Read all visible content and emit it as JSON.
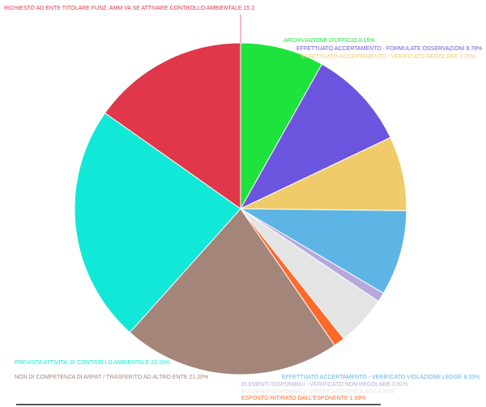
{
  "chart_data": {
    "type": "pie",
    "categories": [
      "ARCHIVIAZIONE D'UFFICIO",
      "EFFETTUATO ACCERTAMENTO - FORMULATE OSSERVAZIONI",
      "EFFETTUATO ACCERTAMENTO - VERIFICATO REGOLARE",
      "EFFETTUATO ACCERTAMENTO - VERIFICATO VIOLAZIONE LEGGE",
      "ELEMENTI DISPONIBILI - VERIFICATO NON REGOLARE",
      "ELEMENTI DISPONIBILI - VERIFICATO REGOLARE",
      "ESPOSTO RITIRATO DALL'ESPONENTE",
      "NON DI COMPETENZA DI ARPAT / TRASFERITO AD ALTRO ENTE",
      "PREVISTA ATTIVITA' DI CONTROLLO AMBIENTALE",
      "RICHIESTO AD ENTE TITOLARE FUNZ. AMM VA SE ATTIVARE CONTROLLO AMBIENTALE"
    ],
    "values": [
      8.15,
      9.78,
      7.25,
      8.33,
      0.91,
      4.9,
      1.09,
      21.2,
      23.19,
      15.2
    ],
    "value_labels": [
      "8.15%",
      "9.78%",
      "7.25%",
      "8.33%",
      "0.91%",
      "4.90%",
      "1.09%",
      "21.20%",
      "23.19%",
      "15.2"
    ],
    "colors": [
      "#1ee33c",
      "#6c55de",
      "#f0cb6a",
      "#5cb5e5",
      "#b7a8dc",
      "#e4e4e4",
      "#ff6a2a",
      "#a48579",
      "#12e8d8",
      "#e0374a"
    ]
  }
}
